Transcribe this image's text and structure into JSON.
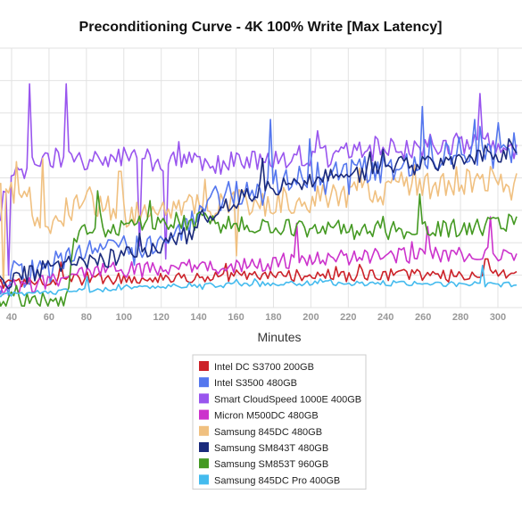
{
  "chart_data": {
    "type": "line",
    "title": "Preconditioning Curve - 4K 100% Write [Max Latency]",
    "xlabel": "Minutes",
    "ylabel": "",
    "xlim": [
      30,
      310
    ],
    "x_ticks": [
      40,
      60,
      80,
      100,
      120,
      140,
      160,
      180,
      200,
      220,
      240,
      260,
      280,
      300
    ],
    "ylim": [
      0,
      8
    ],
    "grid": true,
    "legend_position": "bottom-center",
    "series": [
      {
        "name": "Intel DC S3700 200GB",
        "color": "#cc2229",
        "keyframes": [
          [
            30,
            0.75
          ],
          [
            60,
            0.85
          ],
          [
            100,
            0.9
          ],
          [
            150,
            0.95
          ],
          [
            200,
            1.0
          ],
          [
            250,
            1.0
          ],
          [
            310,
            1.0
          ]
        ],
        "noise": 0.18,
        "spikes": [
          [
            66,
            1.4
          ],
          [
            294,
            1.5
          ]
        ]
      },
      {
        "name": "Intel S3500 480GB",
        "color": "#5577ee",
        "keyframes": [
          [
            30,
            0.6
          ],
          [
            60,
            1.3
          ],
          [
            80,
            1.7
          ],
          [
            100,
            1.9
          ],
          [
            130,
            2.2
          ],
          [
            150,
            3.4
          ],
          [
            170,
            3.7
          ],
          [
            200,
            4.0
          ],
          [
            240,
            4.3
          ],
          [
            270,
            4.7
          ],
          [
            310,
            4.6
          ]
        ],
        "noise": 0.45,
        "spikes": [
          [
            178,
            5.8
          ],
          [
            200,
            5.2
          ],
          [
            260,
            6.2
          ],
          [
            288,
            5.8
          ],
          [
            300,
            5.7
          ]
        ]
      },
      {
        "name": "Smart CloudSpeed 1000E 400GB",
        "color": "#9955ee",
        "keyframes": [
          [
            30,
            2.4
          ],
          [
            40,
            4.0
          ],
          [
            60,
            4.6
          ],
          [
            100,
            4.6
          ],
          [
            150,
            4.4
          ],
          [
            180,
            4.6
          ],
          [
            220,
            4.8
          ],
          [
            260,
            5.0
          ],
          [
            290,
            5.1
          ],
          [
            310,
            4.9
          ]
        ],
        "noise": 0.35,
        "spikes": [
          [
            38,
            1.0
          ],
          [
            50,
            6.9
          ],
          [
            69,
            6.9
          ],
          [
            108,
            1.9
          ],
          [
            122,
            1.5
          ],
          [
            290,
            6.6
          ]
        ]
      },
      {
        "name": "Micron M500DC 480GB",
        "color": "#cc33cc",
        "keyframes": [
          [
            30,
            0.45
          ],
          [
            80,
            1.1
          ],
          [
            120,
            1.2
          ],
          [
            160,
            1.3
          ],
          [
            200,
            1.5
          ],
          [
            250,
            1.6
          ],
          [
            310,
            1.7
          ]
        ],
        "noise": 0.25,
        "spikes": [
          [
            192,
            2.6
          ],
          [
            262,
            2.5
          ],
          [
            296,
            2.8
          ]
        ]
      },
      {
        "name": "Samsung 845DC 480GB",
        "color": "#f0c080",
        "keyframes": [
          [
            30,
            3.9
          ],
          [
            60,
            2.6
          ],
          [
            80,
            3.4
          ],
          [
            100,
            2.9
          ],
          [
            130,
            3.0
          ],
          [
            160,
            3.2
          ],
          [
            200,
            3.3
          ],
          [
            240,
            3.6
          ],
          [
            270,
            3.8
          ],
          [
            290,
            4.0
          ],
          [
            310,
            3.9
          ]
        ],
        "noise": 0.45,
        "spikes": [
          [
            36,
            0.6
          ],
          [
            42,
            4.5
          ],
          [
            56,
            4.6
          ],
          [
            98,
            4.2
          ],
          [
            160,
            1.6
          ],
          [
            226,
            4.3
          ],
          [
            256,
            4.4
          ]
        ]
      },
      {
        "name": "Samsung SM843T 480GB",
        "color": "#1a2a7c",
        "keyframes": [
          [
            30,
            0.7
          ],
          [
            60,
            1.2
          ],
          [
            100,
            1.6
          ],
          [
            130,
            2.1
          ],
          [
            150,
            3.0
          ],
          [
            170,
            3.6
          ],
          [
            200,
            3.9
          ],
          [
            240,
            4.3
          ],
          [
            280,
            4.6
          ],
          [
            310,
            4.8
          ]
        ],
        "noise": 0.3,
        "spikes": [
          [
            174,
            4.6
          ],
          [
            232,
            4.8
          ],
          [
            306,
            5.2
          ]
        ]
      },
      {
        "name": "Samsung SM853T 960GB",
        "color": "#449922",
        "keyframes": [
          [
            30,
            0.2
          ],
          [
            60,
            0.25
          ],
          [
            70,
            0.3
          ],
          [
            74,
            2.2
          ],
          [
            100,
            2.6
          ],
          [
            130,
            2.7
          ],
          [
            170,
            2.5
          ],
          [
            210,
            2.4
          ],
          [
            250,
            2.4
          ],
          [
            290,
            2.5
          ],
          [
            310,
            2.6
          ]
        ],
        "noise": 0.3,
        "spikes": [
          [
            86,
            3.6
          ],
          [
            114,
            3.3
          ],
          [
            258,
            3.5
          ]
        ]
      },
      {
        "name": "Samsung 845DC Pro 400GB",
        "color": "#44bbee",
        "keyframes": [
          [
            30,
            0.4
          ],
          [
            70,
            0.5
          ],
          [
            100,
            0.6
          ],
          [
            150,
            0.7
          ],
          [
            200,
            0.75
          ],
          [
            250,
            0.75
          ],
          [
            310,
            0.7
          ]
        ],
        "noise": 0.08,
        "spikes": [
          [
            80,
            0.95
          ],
          [
            292,
            1.3
          ]
        ]
      }
    ]
  }
}
